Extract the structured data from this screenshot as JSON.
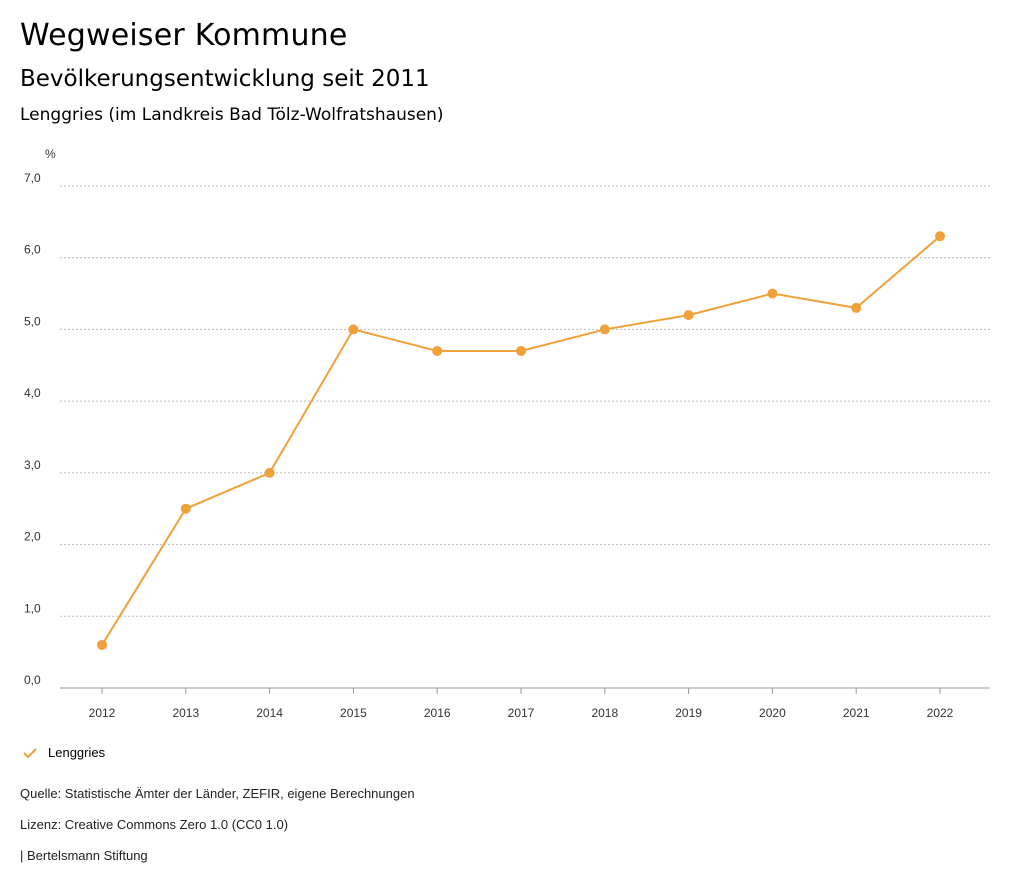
{
  "header": {
    "title": "Wegweiser Kommune",
    "subtitle": "Bevölkerungsentwicklung seit 2011",
    "region": "Lenggries (im Landkreis Bad Tölz-Wolfratshausen)"
  },
  "chart_data": {
    "type": "line",
    "ylabel": "%",
    "ylim": [
      0,
      7
    ],
    "yticks": [
      "0,0",
      "1,0",
      "2,0",
      "3,0",
      "4,0",
      "5,0",
      "6,0",
      "7,0"
    ],
    "categories": [
      "2012",
      "2013",
      "2014",
      "2015",
      "2016",
      "2017",
      "2018",
      "2019",
      "2020",
      "2021",
      "2022"
    ],
    "series": [
      {
        "name": "Lenggries",
        "color": "#f0a13a",
        "values": [
          0.6,
          2.5,
          3.0,
          5.0,
          4.7,
          4.7,
          5.0,
          5.2,
          5.5,
          5.3,
          6.3
        ]
      }
    ],
    "grid": true,
    "legend": "bottom-left"
  },
  "footer": {
    "source": "Quelle: Statistische Ämter der Länder, ZEFIR, eigene Berechnungen",
    "license": "Lizenz: Creative Commons Zero 1.0 (CC0 1.0)",
    "publisher": "| Bertelsmann Stiftung"
  }
}
